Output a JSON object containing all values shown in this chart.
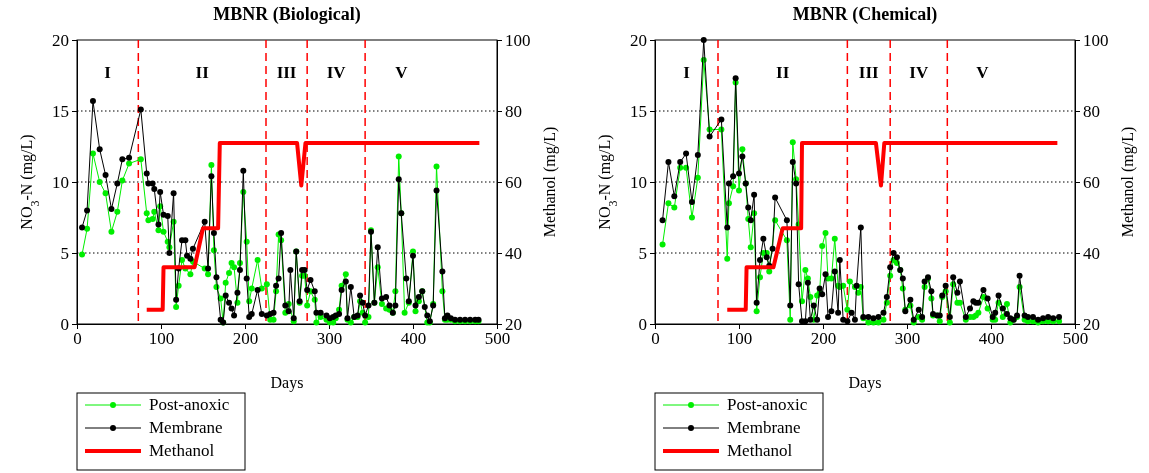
{
  "chart_data": [
    {
      "type": "line",
      "title": "MBNR (Biological)",
      "xlabel": "Days",
      "ylabel": "NO$_{3}$-N (mg/L)",
      "y2label": "Methanol (mg/L)",
      "xlim": [
        0,
        500
      ],
      "xticks": [
        0,
        100,
        200,
        300,
        400,
        500
      ],
      "ylim": [
        0,
        20
      ],
      "yticks": [
        0,
        5,
        10,
        15,
        20
      ],
      "y2lim": [
        20,
        100
      ],
      "y2ticks": [
        20,
        40,
        60,
        80,
        100
      ],
      "grid": "y",
      "legend": "bottom left",
      "ref_lines": [
        {
          "axis": "x",
          "value": 73,
          "color": "#ff0000",
          "line_style": "dashed"
        },
        {
          "axis": "x",
          "value": 225,
          "color": "#ff0000",
          "line_style": "dashed"
        },
        {
          "axis": "x",
          "value": 274,
          "color": "#ff0000",
          "line_style": "dashed"
        },
        {
          "axis": "x",
          "value": 343,
          "color": "#ff0000",
          "line_style": "dashed"
        }
      ],
      "annotations": [
        "I",
        "II",
        "III",
        "IV",
        "V"
      ],
      "series": [
        {
          "name": "Post-anoxic",
          "color": "#00ee00",
          "marker": "circle",
          "x": [
            6,
            12,
            19,
            27,
            34,
            41,
            48,
            54,
            62,
            76,
            83,
            85,
            90,
            92,
            97,
            99,
            103,
            108,
            110,
            115,
            118,
            121,
            125,
            129,
            135,
            138,
            152,
            156,
            160,
            163,
            166,
            171,
            174,
            177,
            181,
            184,
            187,
            191,
            194,
            198,
            202,
            205,
            208,
            215,
            220,
            226,
            230,
            234,
            237,
            240,
            243,
            248,
            252,
            258,
            261,
            265,
            268,
            271,
            274,
            278,
            283,
            285,
            290,
            297,
            301,
            305,
            308,
            312,
            315,
            320,
            322,
            326,
            330,
            334,
            337,
            340,
            343,
            347,
            350,
            354,
            358,
            363,
            368,
            372,
            376,
            379,
            383,
            386,
            390,
            395,
            400,
            403,
            407,
            411,
            417,
            420,
            424,
            428,
            435,
            438,
            441,
            445,
            450,
            456,
            462,
            468,
            474,
            478
          ],
          "values": [
            4.9,
            6.7,
            12.0,
            10.0,
            9.2,
            6.5,
            7.9,
            10.1,
            11.3,
            11.6,
            7.8,
            7.3,
            7.4,
            7.9,
            6.6,
            8.3,
            6.5,
            5.8,
            5.4,
            7.2,
            1.2,
            2.7,
            4.5,
            3.9,
            3.5,
            4.4,
            3.9,
            3.5,
            11.2,
            5.2,
            2.6,
            1.8,
            0.1,
            2.9,
            3.6,
            4.3,
            4.0,
            1.5,
            4.3,
            9.3,
            5.8,
            1.6,
            2.5,
            4.5,
            2.5,
            2.8,
            0.3,
            0.3,
            2.3,
            6.3,
            5.9,
            0.8,
            1.4,
            0.2,
            5.1,
            1.5,
            3.4,
            3.4,
            1.3,
            2.3,
            1.7,
            0.1,
            0.5,
            0.3,
            0.1,
            0.1,
            0.4,
            1.0,
            2.7,
            3.5,
            0.3,
            0.1,
            0.5,
            0.5,
            1.6,
            0.8,
            0.1,
            0.5,
            6.6,
            1.5,
            4.0,
            1.4,
            1.1,
            1.0,
            0.8,
            2.3,
            11.8,
            7.8,
            0.8,
            1.5,
            5.1,
            0.9,
            1.6,
            2.3,
            0.1,
            0.1,
            1.4,
            11.1,
            2.3,
            0.3,
            0.3,
            0.3,
            0.2,
            0.2,
            0.2,
            0.2,
            0.2,
            0.2
          ]
        },
        {
          "name": "Membrane",
          "color": "#000000",
          "marker": "circle",
          "x": [
            6,
            12,
            19,
            27,
            34,
            41,
            48,
            54,
            62,
            76,
            83,
            85,
            90,
            92,
            97,
            99,
            103,
            108,
            110,
            115,
            118,
            121,
            125,
            129,
            131,
            135,
            138,
            152,
            156,
            160,
            163,
            166,
            171,
            174,
            177,
            181,
            184,
            187,
            191,
            194,
            198,
            202,
            205,
            208,
            215,
            220,
            226,
            230,
            234,
            237,
            240,
            243,
            248,
            252,
            254,
            258,
            261,
            265,
            268,
            271,
            274,
            278,
            283,
            285,
            290,
            297,
            301,
            305,
            308,
            312,
            315,
            320,
            322,
            326,
            330,
            334,
            337,
            340,
            343,
            347,
            350,
            354,
            358,
            363,
            368,
            372,
            376,
            379,
            383,
            386,
            392,
            395,
            400,
            403,
            407,
            411,
            414,
            417,
            420,
            424,
            428,
            435,
            438,
            441,
            445,
            450,
            456,
            462,
            468,
            474,
            478
          ],
          "values": [
            6.8,
            8.0,
            15.7,
            12.3,
            10.5,
            8.1,
            9.9,
            11.6,
            11.7,
            15.1,
            10.6,
            9.9,
            9.9,
            9.5,
            7.0,
            9.3,
            7.7,
            7.6,
            5.0,
            9.2,
            1.7,
            3.9,
            5.9,
            5.9,
            4.8,
            4.6,
            5.3,
            7.2,
            3.9,
            10.4,
            6.4,
            3.3,
            0.3,
            0.1,
            2.0,
            1.5,
            1.1,
            0.6,
            2.2,
            3.8,
            10.8,
            3.2,
            0.5,
            0.7,
            2.4,
            0.7,
            0.6,
            0.7,
            0.8,
            2.7,
            3.2,
            6.4,
            1.3,
            0.9,
            3.8,
            0.4,
            5.1,
            1.6,
            3.8,
            3.8,
            2.4,
            3.1,
            2.3,
            0.8,
            0.8,
            0.6,
            0.4,
            0.5,
            0.6,
            0.7,
            2.4,
            3.0,
            0.4,
            2.6,
            0.5,
            0.6,
            2.0,
            1.5,
            0.6,
            1.3,
            6.5,
            1.5,
            5.4,
            1.8,
            1.9,
            1.3,
            0.8,
            1.3,
            10.2,
            7.8,
            3.2,
            1.6,
            4.8,
            1.3,
            1.9,
            2.3,
            1.2,
            0.6,
            0.2,
            1.3,
            9.4,
            3.7,
            0.4,
            0.6,
            0.4,
            0.3,
            0.3,
            0.3,
            0.3,
            0.3,
            0.3
          ]
        },
        {
          "name": "Methanol",
          "color": "#ff0000",
          "axis": "y2",
          "marker": "none",
          "x": [
            83,
            102,
            103,
            140,
            150,
            168,
            170,
            262,
            267,
            272,
            479
          ],
          "values": [
            24,
            24,
            36,
            36,
            47,
            47,
            71,
            71,
            59,
            71,
            71
          ]
        }
      ]
    },
    {
      "type": "line",
      "title": "MBNR (Chemical)",
      "xlabel": "Days",
      "ylabel": "NO$_{3}$-N (mg/L)",
      "y2label": "Methanol (mg/L)",
      "xlim": [
        0,
        500
      ],
      "xticks": [
        0,
        100,
        200,
        300,
        400,
        500
      ],
      "ylim": [
        0,
        20
      ],
      "yticks": [
        0,
        5,
        10,
        15,
        20
      ],
      "y2lim": [
        20,
        100
      ],
      "y2ticks": [
        20,
        40,
        60,
        80,
        100
      ],
      "grid": "y",
      "legend": "bottom left",
      "ref_lines": [
        {
          "axis": "x",
          "value": 75,
          "color": "#ff0000",
          "line_style": "dashed"
        },
        {
          "axis": "x",
          "value": 229,
          "color": "#ff0000",
          "line_style": "dashed"
        },
        {
          "axis": "x",
          "value": 280,
          "color": "#ff0000",
          "line_style": "dashed"
        },
        {
          "axis": "x",
          "value": 348,
          "color": "#ff0000",
          "line_style": "dashed"
        }
      ],
      "annotations": [
        "I",
        "II",
        "III",
        "IV",
        "V"
      ],
      "series": [
        {
          "name": "Post-anoxic",
          "color": "#00ee00",
          "marker": "circle",
          "x": [
            9,
            16,
            23,
            30,
            37,
            44,
            51,
            58,
            65,
            79,
            86,
            88,
            93,
            96,
            100,
            104,
            108,
            111,
            114,
            118,
            121,
            125,
            129,
            133,
            136,
            143,
            157,
            161,
            164,
            168,
            171,
            175,
            179,
            182,
            185,
            189,
            193,
            196,
            199,
            203,
            206,
            210,
            214,
            218,
            220,
            224,
            229,
            232,
            238,
            242,
            245,
            248,
            254,
            260,
            266,
            272,
            276,
            280,
            284,
            288,
            292,
            295,
            298,
            304,
            308,
            314,
            318,
            321,
            325,
            329,
            331,
            336,
            339,
            342,
            346,
            351,
            355,
            360,
            363,
            370,
            375,
            379,
            382,
            385,
            391,
            396,
            402,
            405,
            409,
            414,
            419,
            423,
            427,
            431,
            434,
            440,
            444,
            450,
            456,
            462,
            468,
            474,
            481
          ],
          "values": [
            5.6,
            8.5,
            8.2,
            11.0,
            11.0,
            7.5,
            10.3,
            18.6,
            13.7,
            13.7,
            4.6,
            8.5,
            9.7,
            17.0,
            9.4,
            12.3,
            9.9,
            7.4,
            5.4,
            7.8,
            0.9,
            3.3,
            5.0,
            5.0,
            3.7,
            7.3,
            5.9,
            0.3,
            12.8,
            10.2,
            7.0,
            1.6,
            3.8,
            3.2,
            1.9,
            0.3,
            2.0,
            2.2,
            5.5,
            6.4,
            3.2,
            3.2,
            6.0,
            2.7,
            2.6,
            2.7,
            1.0,
            3.0,
            2.6,
            2.2,
            2.6,
            0.4,
            0.1,
            0.1,
            0.1,
            0.3,
            1.5,
            3.4,
            4.5,
            4.3,
            3.8,
            2.5,
            1.0,
            1.3,
            0.1,
            0.5,
            0.3,
            2.6,
            3.2,
            1.8,
            0.6,
            0.6,
            0.2,
            1.9,
            2.3,
            0.1,
            2.8,
            1.5,
            1.5,
            0.3,
            0.5,
            0.5,
            0.6,
            0.8,
            1.9,
            1.1,
            0.3,
            0.3,
            1.5,
            0.5,
            1.4,
            0.1,
            0.3,
            0.5,
            2.6,
            0.3,
            0.2,
            0.2,
            0.1,
            0.2,
            0.2,
            0.2,
            0.2
          ]
        },
        {
          "name": "Membrane",
          "color": "#000000",
          "marker": "circle",
          "x": [
            9,
            16,
            23,
            30,
            37,
            44,
            51,
            58,
            65,
            79,
            86,
            88,
            93,
            96,
            100,
            104,
            108,
            111,
            114,
            118,
            121,
            125,
            129,
            133,
            136,
            140,
            143,
            157,
            161,
            164,
            168,
            171,
            175,
            179,
            182,
            185,
            189,
            193,
            196,
            199,
            203,
            206,
            210,
            214,
            218,
            220,
            224,
            229,
            234,
            238,
            240,
            245,
            248,
            254,
            260,
            266,
            272,
            276,
            280,
            284,
            288,
            292,
            295,
            298,
            304,
            308,
            314,
            318,
            321,
            325,
            329,
            331,
            336,
            339,
            342,
            346,
            351,
            355,
            360,
            363,
            370,
            375,
            379,
            382,
            385,
            391,
            396,
            402,
            405,
            409,
            414,
            419,
            423,
            427,
            431,
            434,
            440,
            444,
            450,
            456,
            462,
            468,
            474,
            481
          ],
          "values": [
            7.3,
            11.4,
            9.0,
            11.4,
            12.0,
            8.6,
            11.9,
            20.0,
            13.2,
            14.4,
            6.8,
            9.9,
            10.4,
            17.3,
            10.6,
            11.8,
            9.9,
            8.2,
            7.3,
            9.1,
            1.5,
            4.5,
            6.0,
            4.7,
            4.1,
            5.3,
            8.9,
            7.3,
            1.3,
            11.4,
            9.9,
            2.8,
            0.2,
            0.2,
            2.9,
            0.3,
            1.3,
            0.3,
            2.5,
            2.1,
            3.5,
            0.5,
            0.9,
            3.7,
            0.8,
            4.5,
            0.3,
            0.2,
            0.8,
            0.3,
            2.7,
            6.8,
            0.5,
            0.5,
            0.4,
            0.5,
            0.8,
            1.9,
            4.0,
            5.0,
            4.7,
            3.8,
            3.2,
            0.9,
            1.7,
            0.3,
            1.0,
            0.5,
            3.0,
            3.3,
            2.3,
            0.7,
            0.6,
            0.6,
            2.0,
            2.7,
            0.5,
            3.3,
            2.2,
            3.0,
            0.5,
            1.1,
            1.6,
            1.5,
            1.5,
            2.4,
            1.8,
            0.5,
            0.8,
            2.0,
            1.1,
            0.7,
            0.4,
            0.3,
            0.6,
            3.4,
            0.6,
            0.5,
            0.5,
            0.3,
            0.4,
            0.5,
            0.4,
            0.5
          ]
        },
        {
          "name": "Methanol",
          "color": "#ff0000",
          "axis": "y2",
          "marker": "none",
          "x": [
            86,
            108,
            109,
            141,
            152,
            174,
            175,
            263,
            269,
            273,
            479
          ],
          "values": [
            24,
            24,
            36,
            36,
            47,
            47,
            71,
            71,
            59,
            71,
            71
          ]
        }
      ]
    }
  ]
}
